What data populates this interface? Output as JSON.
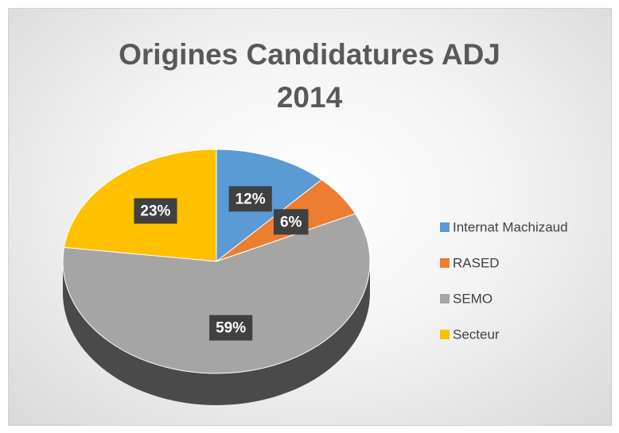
{
  "chart_data": {
    "type": "pie",
    "title": "Origines Candidatures ADJ 2014",
    "categories": [
      "Internat Machizaud",
      "RASED",
      "SEMO",
      "Secteur"
    ],
    "values": [
      12,
      6,
      59,
      23
    ],
    "value_labels": [
      "12%",
      "6%",
      "59%",
      "23%"
    ],
    "colors": [
      "#5b9bd5",
      "#ed7d31",
      "#a5a5a5",
      "#ffc000"
    ],
    "legend": "right"
  }
}
